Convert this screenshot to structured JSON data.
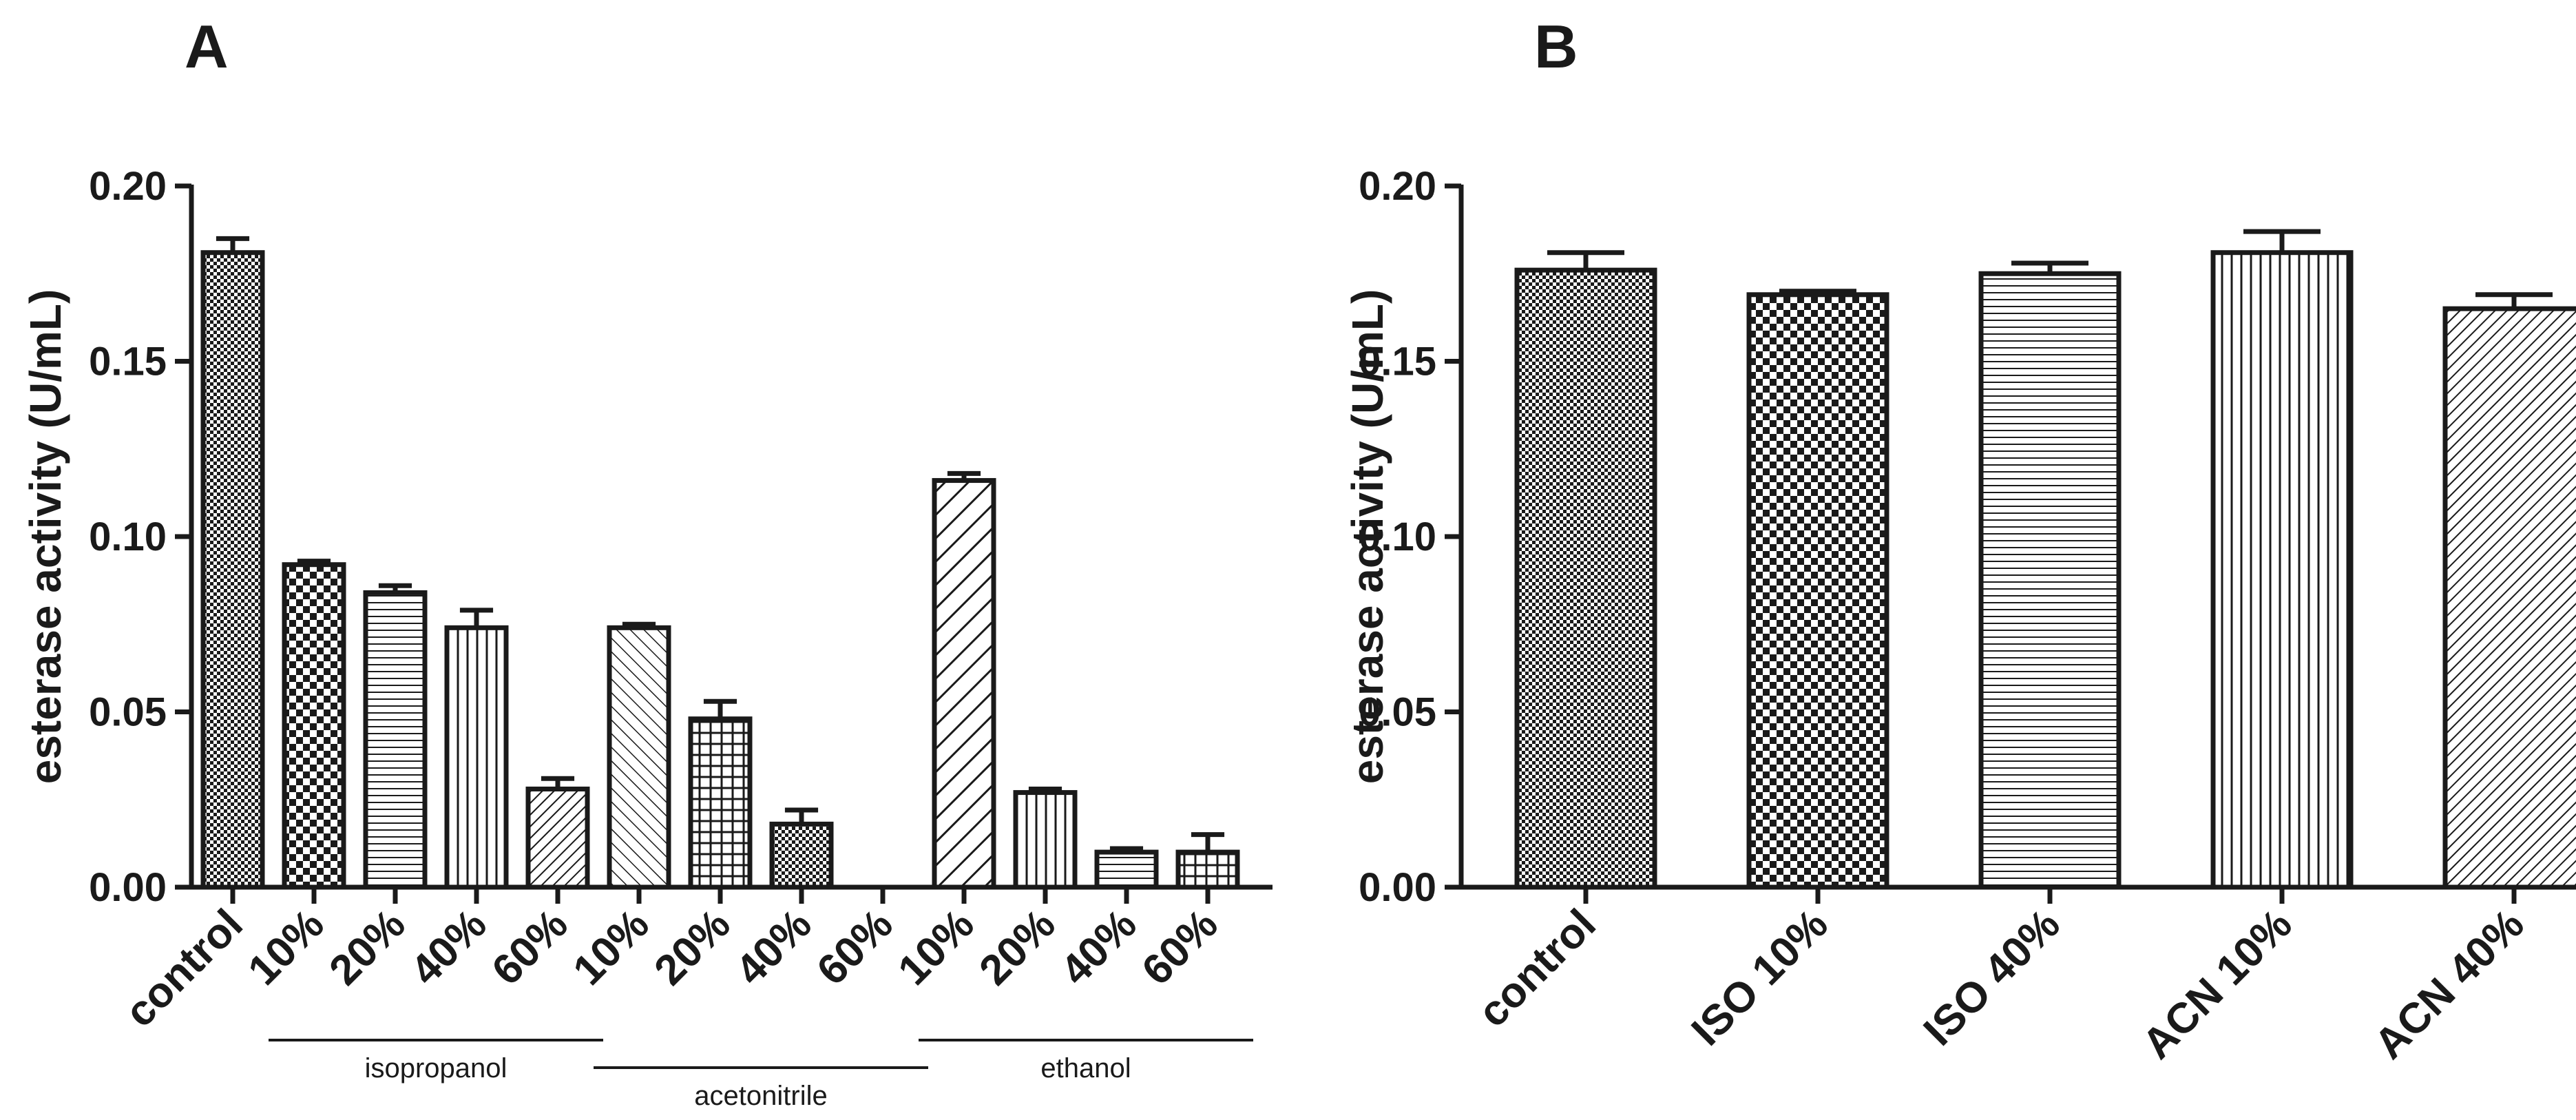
{
  "chart_data": [
    {
      "type": "bar",
      "panel_label": "A",
      "ylabel": "esterase activity (U/mL)",
      "ylim": [
        0,
        0.2
      ],
      "yticks": [
        "0.00",
        "0.05",
        "0.10",
        "0.15",
        "0.20"
      ],
      "categories": [
        "control",
        "10%",
        "20%",
        "40%",
        "60%",
        "10%",
        "20%",
        "40%",
        "60%",
        "10%",
        "20%",
        "40%",
        "60%"
      ],
      "values": [
        0.181,
        0.092,
        0.084,
        0.074,
        0.028,
        0.074,
        0.048,
        0.018,
        0.0,
        0.116,
        0.027,
        0.01,
        0.01
      ],
      "errors": [
        0.004,
        0.001,
        0.002,
        0.005,
        0.003,
        0.001,
        0.005,
        0.004,
        0.0,
        0.002,
        0.001,
        0.001,
        0.005
      ],
      "patterns": [
        "dots",
        "checker",
        "hlines",
        "vlines",
        "diag",
        "backdiag",
        "grid",
        "dots",
        "none",
        "wide-diag",
        "vlines",
        "hlines",
        "grid"
      ],
      "groups": [
        {
          "label": "isopropanol",
          "first": 1,
          "last": 4
        },
        {
          "label": "acetonitrile",
          "first": 5,
          "last": 8
        },
        {
          "label": "ethanol",
          "first": 9,
          "last": 12
        }
      ]
    },
    {
      "type": "bar",
      "panel_label": "B",
      "ylabel": "esterase activity (U/mL)",
      "ylim": [
        0,
        0.2
      ],
      "yticks": [
        "0.00",
        "0.05",
        "0.10",
        "0.15",
        "0.20"
      ],
      "categories": [
        "control",
        "ISO 10%",
        "ISO 40%",
        "ACN 10%",
        "ACN 40%"
      ],
      "values": [
        0.176,
        0.169,
        0.175,
        0.181,
        0.165
      ],
      "errors": [
        0.005,
        0.001,
        0.003,
        0.006,
        0.004
      ],
      "patterns": [
        "dots",
        "checker",
        "hlines",
        "vlines",
        "diag"
      ]
    }
  ]
}
